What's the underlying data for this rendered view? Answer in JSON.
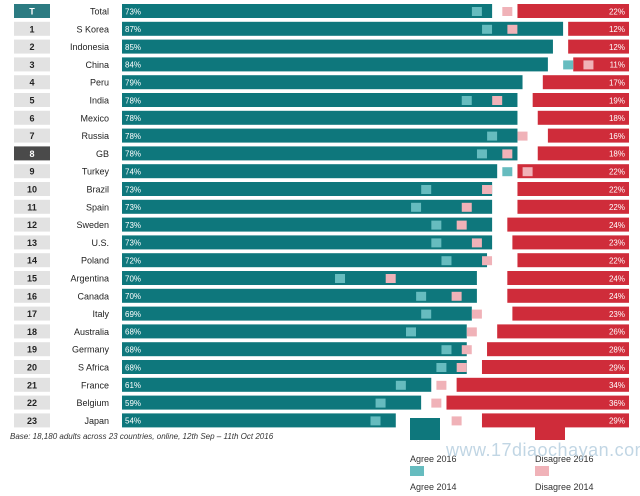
{
  "chart_data": {
    "type": "bar",
    "stacked_diverging": true,
    "rows": [
      {
        "rank": "T",
        "country": "Total",
        "agree2016": 73,
        "disagree2016": 22,
        "agree2014": 70,
        "disagree2014": 24,
        "agree_label": "73%",
        "disagree_label": "22%"
      },
      {
        "rank": "1",
        "country": "S Korea",
        "agree2016": 87,
        "disagree2016": 12,
        "agree2014": 72,
        "disagree2014": 23,
        "agree_label": "87%",
        "disagree_label": "12%"
      },
      {
        "rank": "2",
        "country": "Indonesia",
        "agree2016": 85,
        "disagree2016": 12,
        "agree2014": null,
        "disagree2014": null,
        "agree_label": "85%",
        "disagree_label": "12%"
      },
      {
        "rank": "3",
        "country": "China",
        "agree2016": 84,
        "disagree2016": 11,
        "agree2014": 88,
        "disagree2014": 8,
        "agree_label": "84%",
        "disagree_label": "11%"
      },
      {
        "rank": "4",
        "country": "Peru",
        "agree2016": 79,
        "disagree2016": 17,
        "agree2014": null,
        "disagree2014": null,
        "agree_label": "79%",
        "disagree_label": "17%"
      },
      {
        "rank": "5",
        "country": "India",
        "agree2016": 78,
        "disagree2016": 19,
        "agree2014": 68,
        "disagree2014": 26,
        "agree_label": "78%",
        "disagree_label": "19%"
      },
      {
        "rank": "6",
        "country": "Mexico",
        "agree2016": 78,
        "disagree2016": 18,
        "agree2014": null,
        "disagree2014": null,
        "agree_label": "78%",
        "disagree_label": "18%"
      },
      {
        "rank": "7",
        "country": "Russia",
        "agree2016": 78,
        "disagree2016": 16,
        "agree2014": 73,
        "disagree2014": 21,
        "agree_label": "78%",
        "disagree_label": "16%"
      },
      {
        "rank": "8",
        "country": "GB",
        "agree2016": 78,
        "disagree2016": 18,
        "agree2014": 71,
        "disagree2014": 24,
        "agree_label": "78%",
        "disagree_label": "18%"
      },
      {
        "rank": "9",
        "country": "Turkey",
        "agree2016": 74,
        "disagree2016": 22,
        "agree2014": 76,
        "disagree2014": 20,
        "agree_label": "74%",
        "disagree_label": "22%"
      },
      {
        "rank": "10",
        "country": "Brazil",
        "agree2016": 73,
        "disagree2016": 22,
        "agree2014": 60,
        "disagree2014": 28,
        "agree_label": "73%",
        "disagree_label": "22%"
      },
      {
        "rank": "11",
        "country": "Spain",
        "agree2016": 73,
        "disagree2016": 22,
        "agree2014": 58,
        "disagree2014": 32,
        "agree_label": "73%",
        "disagree_label": "22%"
      },
      {
        "rank": "12",
        "country": "Sweden",
        "agree2016": 73,
        "disagree2016": 24,
        "agree2014": 62,
        "disagree2014": 33,
        "agree_label": "73%",
        "disagree_label": "24%"
      },
      {
        "rank": "13",
        "country": "U.S.",
        "agree2016": 73,
        "disagree2016": 23,
        "agree2014": 62,
        "disagree2014": 30,
        "agree_label": "73%",
        "disagree_label": "23%"
      },
      {
        "rank": "14",
        "country": "Poland",
        "agree2016": 72,
        "disagree2016": 22,
        "agree2014": 64,
        "disagree2014": 28,
        "agree_label": "72%",
        "disagree_label": "22%"
      },
      {
        "rank": "15",
        "country": "Argentina",
        "agree2016": 70,
        "disagree2016": 24,
        "agree2014": 43,
        "disagree2014": 47,
        "agree_label": "70%",
        "disagree_label": "24%"
      },
      {
        "rank": "16",
        "country": "Canada",
        "agree2016": 70,
        "disagree2016": 24,
        "agree2014": 59,
        "disagree2014": 34,
        "agree_label": "70%",
        "disagree_label": "24%"
      },
      {
        "rank": "17",
        "country": "Italy",
        "agree2016": 69,
        "disagree2016": 23,
        "agree2014": 60,
        "disagree2014": 30,
        "agree_label": "69%",
        "disagree_label": "23%"
      },
      {
        "rank": "18",
        "country": "Australia",
        "agree2016": 68,
        "disagree2016": 26,
        "agree2014": 57,
        "disagree2014": 31,
        "agree_label": "68%",
        "disagree_label": "26%"
      },
      {
        "rank": "19",
        "country": "Germany",
        "agree2016": 68,
        "disagree2016": 28,
        "agree2014": 64,
        "disagree2014": 32,
        "agree_label": "68%",
        "disagree_label": "28%"
      },
      {
        "rank": "20",
        "country": "S Africa",
        "agree2016": 68,
        "disagree2016": 29,
        "agree2014": 63,
        "disagree2014": 33,
        "agree_label": "68%",
        "disagree_label": "29%"
      },
      {
        "rank": "21",
        "country": "France",
        "agree2016": 61,
        "disagree2016": 34,
        "agree2014": 55,
        "disagree2014": 37,
        "agree_label": "61%",
        "disagree_label": "34%"
      },
      {
        "rank": "22",
        "country": "Belgium",
        "agree2016": 59,
        "disagree2016": 36,
        "agree2014": 51,
        "disagree2014": 38,
        "agree_label": "59%",
        "disagree_label": "36%"
      },
      {
        "rank": "23",
        "country": "Japan",
        "agree2016": 54,
        "disagree2016": 29,
        "agree2014": 50,
        "disagree2014": 34,
        "agree_label": "54%",
        "disagree_label": "29%"
      }
    ],
    "legend": {
      "agree2016": "Agree 2016",
      "disagree2016": "Disagree 2016",
      "agree2014": "Agree 2014",
      "disagree2014": "Disagree 2014"
    },
    "colors": {
      "agree2016": "#0e777c",
      "disagree2016": "#cf2c3a",
      "agree2014": "#66bcbf",
      "disagree2014": "#f0b2b8",
      "rank_box": "#e2e2e2",
      "rank_box_dark": "#2c7b82",
      "rank_box_gb": "#4a4a4a"
    },
    "xlim": [
      0,
      100
    ],
    "legend_position": "bottom-right",
    "grid": false
  },
  "footer": {
    "base_note": "Base: 18,180 adults across 23 countries, online, 12th Sep – 11th Oct 2016",
    "watermark": "www.17diaochayan.com"
  }
}
